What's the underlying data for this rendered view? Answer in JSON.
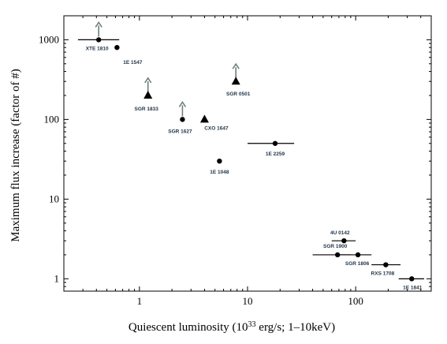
{
  "chart_data": {
    "type": "scatter",
    "title": "",
    "xlabel_pre": "Quiescent luminosity (10",
    "xlabel_sup": "33",
    "xlabel_post": " erg/s; 1–10keV)",
    "ylabel": "Maximum flux increase (factor of #)",
    "x_scale": "log",
    "y_scale": "log",
    "xlim": [
      0.2,
      500
    ],
    "ylim": [
      0.7,
      2000
    ],
    "x_ticks": [
      1,
      10,
      100
    ],
    "x_tick_labels": [
      "1",
      "10",
      "100"
    ],
    "y_ticks": [
      1,
      10,
      100,
      1000
    ],
    "y_tick_labels": [
      "1",
      "10",
      "100",
      "1000"
    ],
    "grid": false,
    "legend": "none",
    "colors": {
      "marker": "#000000",
      "arrow": "#6f7f7f",
      "label": "#1f3247"
    },
    "points": [
      {
        "name": "XTE 1810",
        "x": 0.42,
        "y": 1000,
        "marker": "circle",
        "xerr": [
          0.27,
          0.65
        ],
        "lower_limit": true
      },
      {
        "name": "1E 1547",
        "x": 0.62,
        "y": 800,
        "marker": "circle"
      },
      {
        "name": "SGR 1833",
        "x": 1.2,
        "y": 200,
        "marker": "triangle",
        "lower_limit": true
      },
      {
        "name": "SGR 1627",
        "x": 2.5,
        "y": 100,
        "marker": "circle",
        "lower_limit": true
      },
      {
        "name": "CXO 1647",
        "x": 4.0,
        "y": 100,
        "marker": "triangle"
      },
      {
        "name": "SGR 0501",
        "x": 7.8,
        "y": 300,
        "marker": "triangle",
        "lower_limit": true
      },
      {
        "name": "1E 1048",
        "x": 5.5,
        "y": 30,
        "marker": "circle"
      },
      {
        "name": "1E 2259",
        "x": 18,
        "y": 50,
        "marker": "circle",
        "xerr": [
          10,
          27
        ]
      },
      {
        "name": "4U 0142",
        "x": 78,
        "y": 3,
        "marker": "circle",
        "xerr": [
          60,
          100
        ]
      },
      {
        "name": "SGR 1900",
        "x": 68,
        "y": 2,
        "marker": "circle",
        "xerr": [
          40,
          90
        ]
      },
      {
        "name": "SGR 1806",
        "x": 105,
        "y": 2,
        "marker": "circle",
        "xerr": [
          70,
          140
        ]
      },
      {
        "name": "RXS 1708",
        "x": 190,
        "y": 1.5,
        "marker": "circle",
        "xerr": [
          140,
          260
        ]
      },
      {
        "name": "1E 1841",
        "x": 330,
        "y": 1.0,
        "marker": "circle",
        "xerr": [
          250,
          430
        ]
      }
    ]
  }
}
